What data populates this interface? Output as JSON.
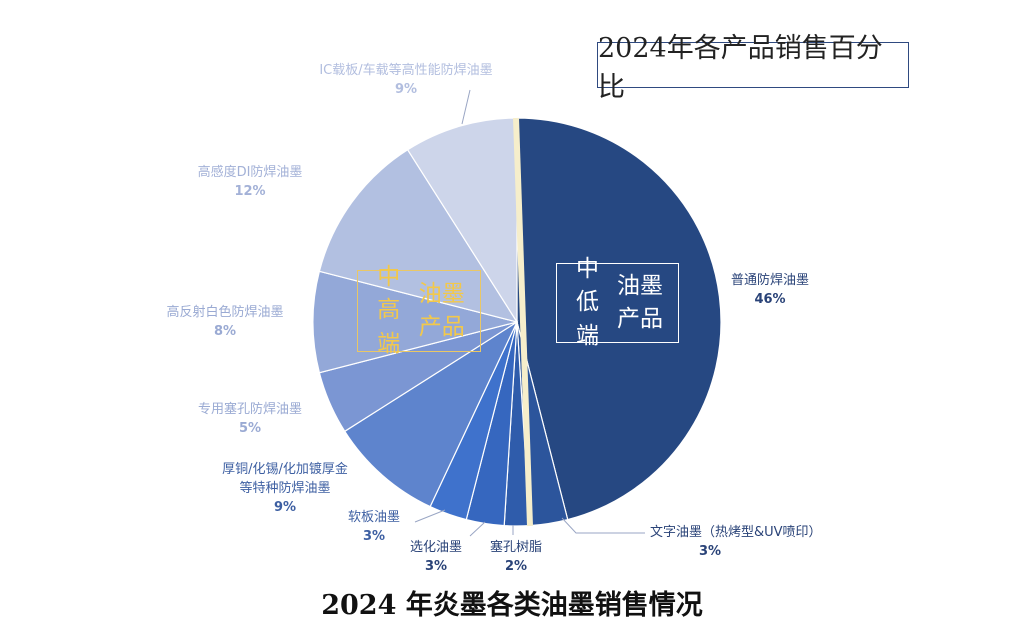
{
  "chart_data": {
    "type": "pie",
    "title": "2024年各产品销售百分比",
    "caption": "2024 年炎墨各类油墨销售情况",
    "groups": [
      {
        "lines": [
          "中低端",
          "油墨产品"
        ]
      },
      {
        "lines": [
          "中高端",
          "油墨产品"
        ]
      }
    ],
    "slices": [
      {
        "label": [
          "普通防焊油墨"
        ],
        "value": 46,
        "pct": "46%",
        "color": "#264882"
      },
      {
        "label": [
          "文字油墨（热烤型&UV喷印）"
        ],
        "value": 3,
        "pct": "3%",
        "color": "#2c559c"
      },
      {
        "label": [
          "塞孔树脂"
        ],
        "value": 2,
        "pct": "2%",
        "color": "#2f5cab"
      },
      {
        "label": [
          "选化油墨"
        ],
        "value": 3,
        "pct": "3%",
        "color": "#3667bf"
      },
      {
        "label": [
          "软板油墨"
        ],
        "value": 3,
        "pct": "3%",
        "color": "#3f72cc"
      },
      {
        "label": [
          "厚铜/化锡/化加镀厚金",
          "等特种防焊油墨"
        ],
        "value": 9,
        "pct": "9%",
        "color": "#5e84cd"
      },
      {
        "label": [
          "专用塞孔防焊油墨"
        ],
        "value": 5,
        "pct": "5%",
        "color": "#7b96d3"
      },
      {
        "label": [
          "高反射白色防焊油墨"
        ],
        "value": 8,
        "pct": "8%",
        "color": "#93a8d8"
      },
      {
        "label": [
          "高感度DI防焊油墨"
        ],
        "value": 12,
        "pct": "12%",
        "color": "#b2c0e1"
      },
      {
        "label": [
          "IC载板/车载等高性能防焊油墨"
        ],
        "value": 9,
        "pct": "9%",
        "color": "#cdd5ea"
      }
    ]
  }
}
